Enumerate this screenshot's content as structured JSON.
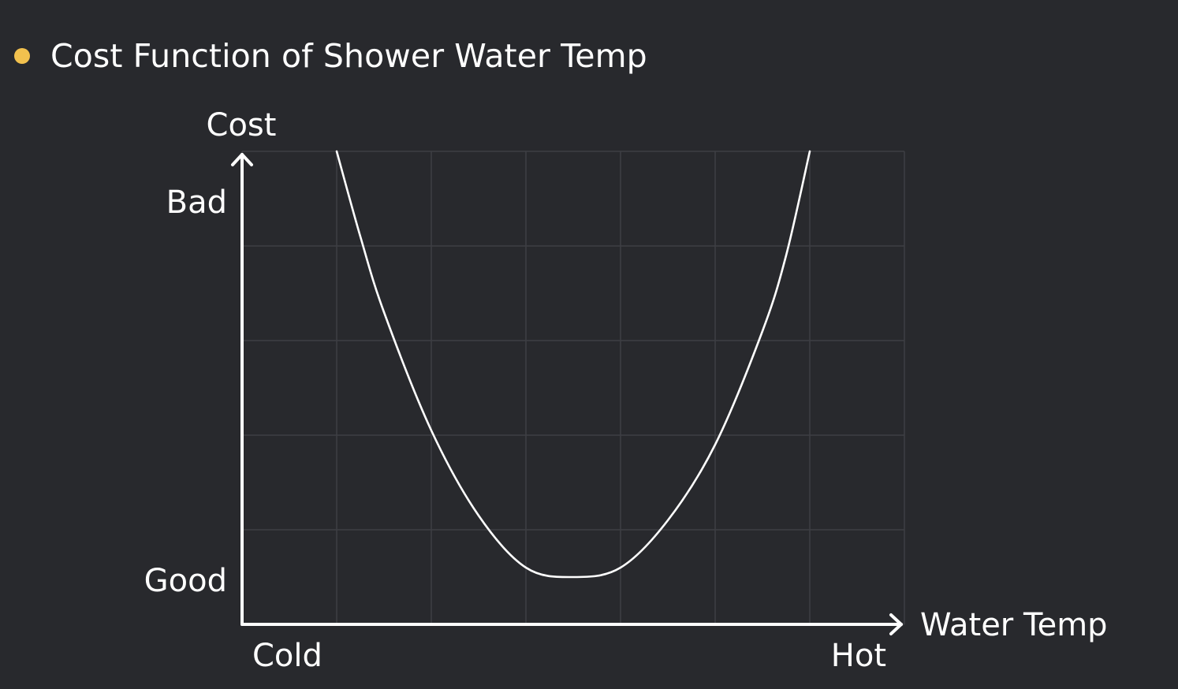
{
  "slide": {
    "title": "Cost Function of Shower Water Temp",
    "bullet_color": "#f2c14e",
    "background_color": "#28292d"
  },
  "chart_data": {
    "type": "line",
    "title": "",
    "xlabel": "Water Temp",
    "ylabel": "Cost",
    "x_tick_labels": {
      "min": "Cold",
      "max": "Hot"
    },
    "y_tick_labels": {
      "min": "Good",
      "max": "Bad"
    },
    "xlim": [
      0,
      7
    ],
    "ylim": [
      0,
      5
    ],
    "grid": true,
    "series": [
      {
        "line_color": "#ffffff",
        "points": [
          [
            1.0,
            5.0
          ],
          [
            1.25,
            4.1
          ],
          [
            1.5,
            3.3
          ],
          [
            2.0,
            2.05
          ],
          [
            2.5,
            1.15
          ],
          [
            3.0,
            0.6
          ],
          [
            3.5,
            0.5
          ],
          [
            4.0,
            0.6
          ],
          [
            4.5,
            1.1
          ],
          [
            5.0,
            1.9
          ],
          [
            5.5,
            3.1
          ],
          [
            5.75,
            3.9
          ],
          [
            6.0,
            5.0
          ]
        ]
      }
    ]
  }
}
